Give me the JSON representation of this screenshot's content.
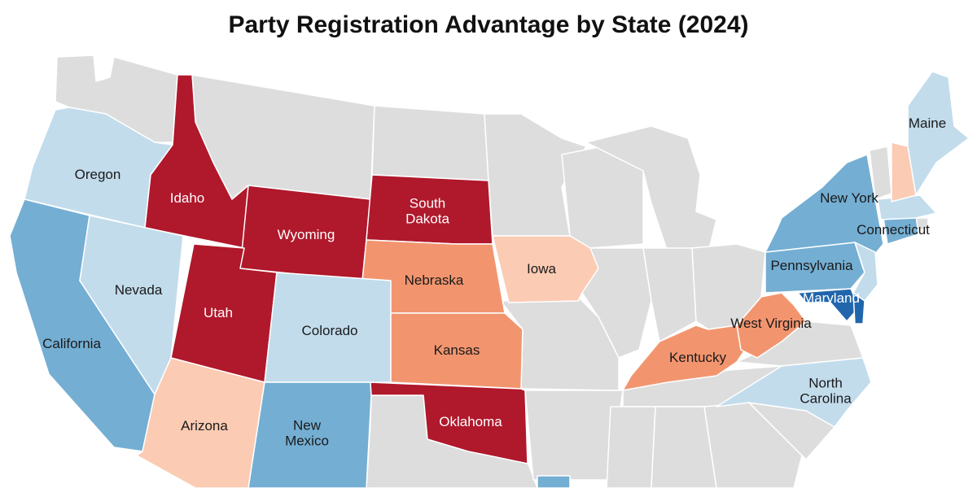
{
  "title": "Party Registration Advantage by State (2024)",
  "colors": {
    "strong_rep": "#b0182b",
    "lean_rep": "#f2956f",
    "slight_rep": "#fbcbb3",
    "slight_dem": "#c2dcec",
    "lean_dem": "#74aed3",
    "strong_dem": "#2166ac",
    "no_data": "#dddddd"
  },
  "states": {
    "oregon": {
      "label": [
        "Oregon"
      ],
      "category": "slight_dem"
    },
    "idaho": {
      "label": [
        "Idaho"
      ],
      "category": "strong_rep"
    },
    "wyoming": {
      "label": [
        "Wyoming"
      ],
      "category": "strong_rep"
    },
    "south_dakota": {
      "label": [
        "South",
        "Dakota"
      ],
      "category": "strong_rep"
    },
    "utah": {
      "label": [
        "Utah"
      ],
      "category": "strong_rep"
    },
    "oklahoma": {
      "label": [
        "Oklahoma"
      ],
      "category": "strong_rep"
    },
    "nebraska": {
      "label": [
        "Nebraska"
      ],
      "category": "lean_rep"
    },
    "kansas": {
      "label": [
        "Kansas"
      ],
      "category": "lean_rep"
    },
    "kentucky": {
      "label": [
        "Kentucky"
      ],
      "category": "lean_rep"
    },
    "west_virginia": {
      "label": [
        "West Virginia"
      ],
      "category": "lean_rep"
    },
    "iowa": {
      "label": [
        "Iowa"
      ],
      "category": "slight_rep"
    },
    "arizona": {
      "label": [
        "Arizona"
      ],
      "category": "slight_rep"
    },
    "new_hampshire": {
      "label": [],
      "category": "slight_rep"
    },
    "nevada": {
      "label": [
        "Nevada"
      ],
      "category": "slight_dem"
    },
    "colorado": {
      "label": [
        "Colorado"
      ],
      "category": "slight_dem"
    },
    "north_carolina": {
      "label": [
        "North",
        "Carolina"
      ],
      "category": "slight_dem"
    },
    "maine": {
      "label": [
        "Maine"
      ],
      "category": "slight_dem"
    },
    "new_jersey": {
      "label": [],
      "category": "slight_dem"
    },
    "massachusetts": {
      "label": [],
      "category": "slight_dem"
    },
    "california": {
      "label": [
        "California"
      ],
      "category": "lean_dem"
    },
    "new_mexico": {
      "label": [
        "New",
        "Mexico"
      ],
      "category": "lean_dem"
    },
    "new_york": {
      "label": [
        "New York"
      ],
      "category": "lean_dem"
    },
    "pennsylvania": {
      "label": [
        "Pennsylvania"
      ],
      "category": "lean_dem"
    },
    "connecticut": {
      "label": [
        "Connecticut"
      ],
      "category": "lean_dem"
    },
    "louisiana": {
      "label": [],
      "category": "lean_dem"
    },
    "maryland": {
      "label": [
        "Maryland"
      ],
      "category": "strong_dem"
    },
    "delaware": {
      "label": [],
      "category": "strong_dem"
    }
  }
}
